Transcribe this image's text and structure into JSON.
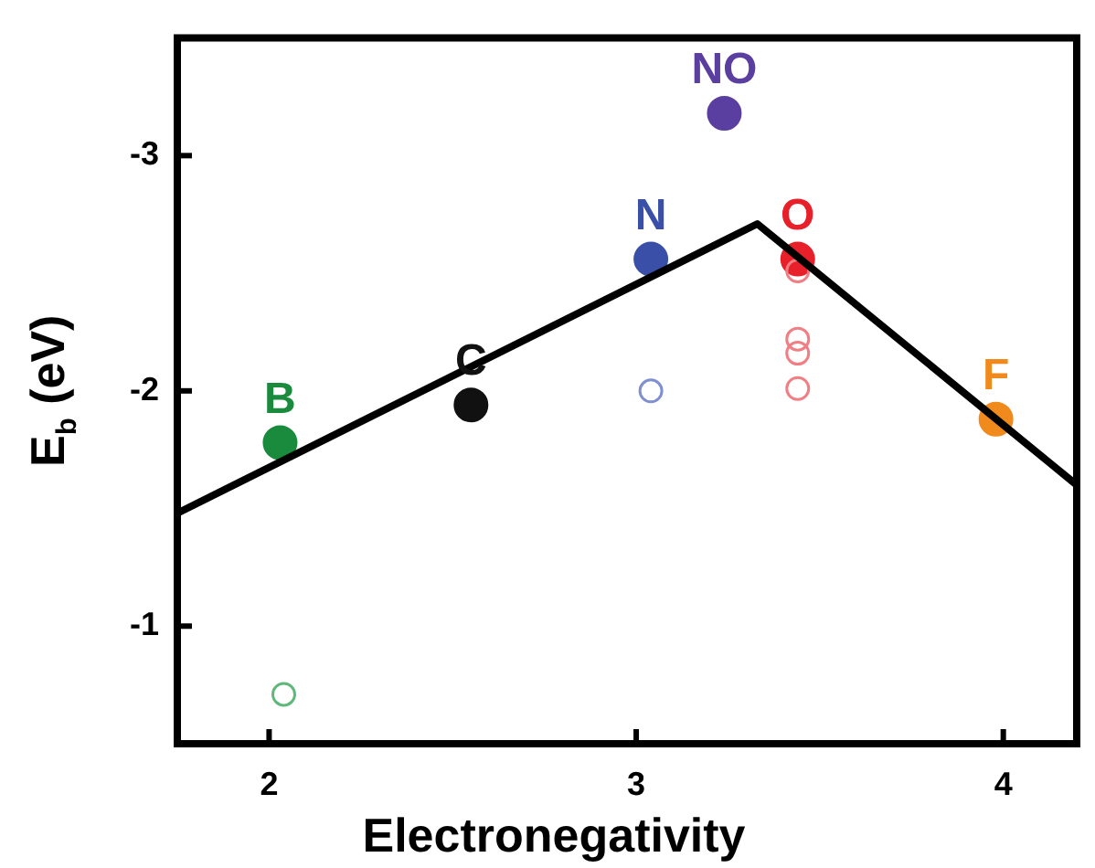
{
  "chart_data": {
    "type": "scatter",
    "xlabel": "Electronegativity",
    "ylabel": "E$_{b}$ (eV)",
    "xlim": [
      1.75,
      4.2
    ],
    "xticks": [
      2,
      3,
      4
    ],
    "ylim": [
      -0.5,
      -3.5
    ],
    "yticks": [
      -1,
      -2,
      -3
    ],
    "grid": false,
    "legend": false,
    "marker": "circle",
    "series": [
      {
        "type": "line",
        "color": "#000000",
        "x": [
          1.75,
          3.33,
          4.2
        ],
        "values": [
          -1.48,
          -2.71,
          -1.6
        ],
        "marker": "none"
      },
      {
        "name": "B",
        "color": "#1a8a3c",
        "x": [
          2.03
        ],
        "values": [
          -1.78
        ]
      },
      {
        "name": "C",
        "color": "#111111",
        "x": [
          2.55
        ],
        "values": [
          -1.94
        ]
      },
      {
        "name": "N",
        "color": "#3a4fa8",
        "x": [
          3.04
        ],
        "values": [
          -2.56
        ]
      },
      {
        "name": "O",
        "color": "#e8202a",
        "x": [
          3.44
        ],
        "values": [
          -2.56
        ]
      },
      {
        "name": "F",
        "color": "#f08a1c",
        "x": [
          3.98
        ],
        "values": [
          -1.88
        ]
      },
      {
        "name": "NO",
        "color": "#5a3fa0",
        "x": [
          3.24
        ],
        "values": [
          -3.18
        ]
      },
      {
        "color": "#5fb87a",
        "x": [
          2.04
        ],
        "values": [
          -0.71
        ]
      },
      {
        "color": "#7f8fd0",
        "x": [
          3.04
        ],
        "values": [
          -2.0
        ]
      },
      {
        "color": "#f07f85",
        "x": [
          3.44,
          3.44,
          3.44,
          3.44
        ],
        "values": [
          -2.51,
          -2.22,
          -2.16,
          -2.01
        ]
      }
    ]
  }
}
